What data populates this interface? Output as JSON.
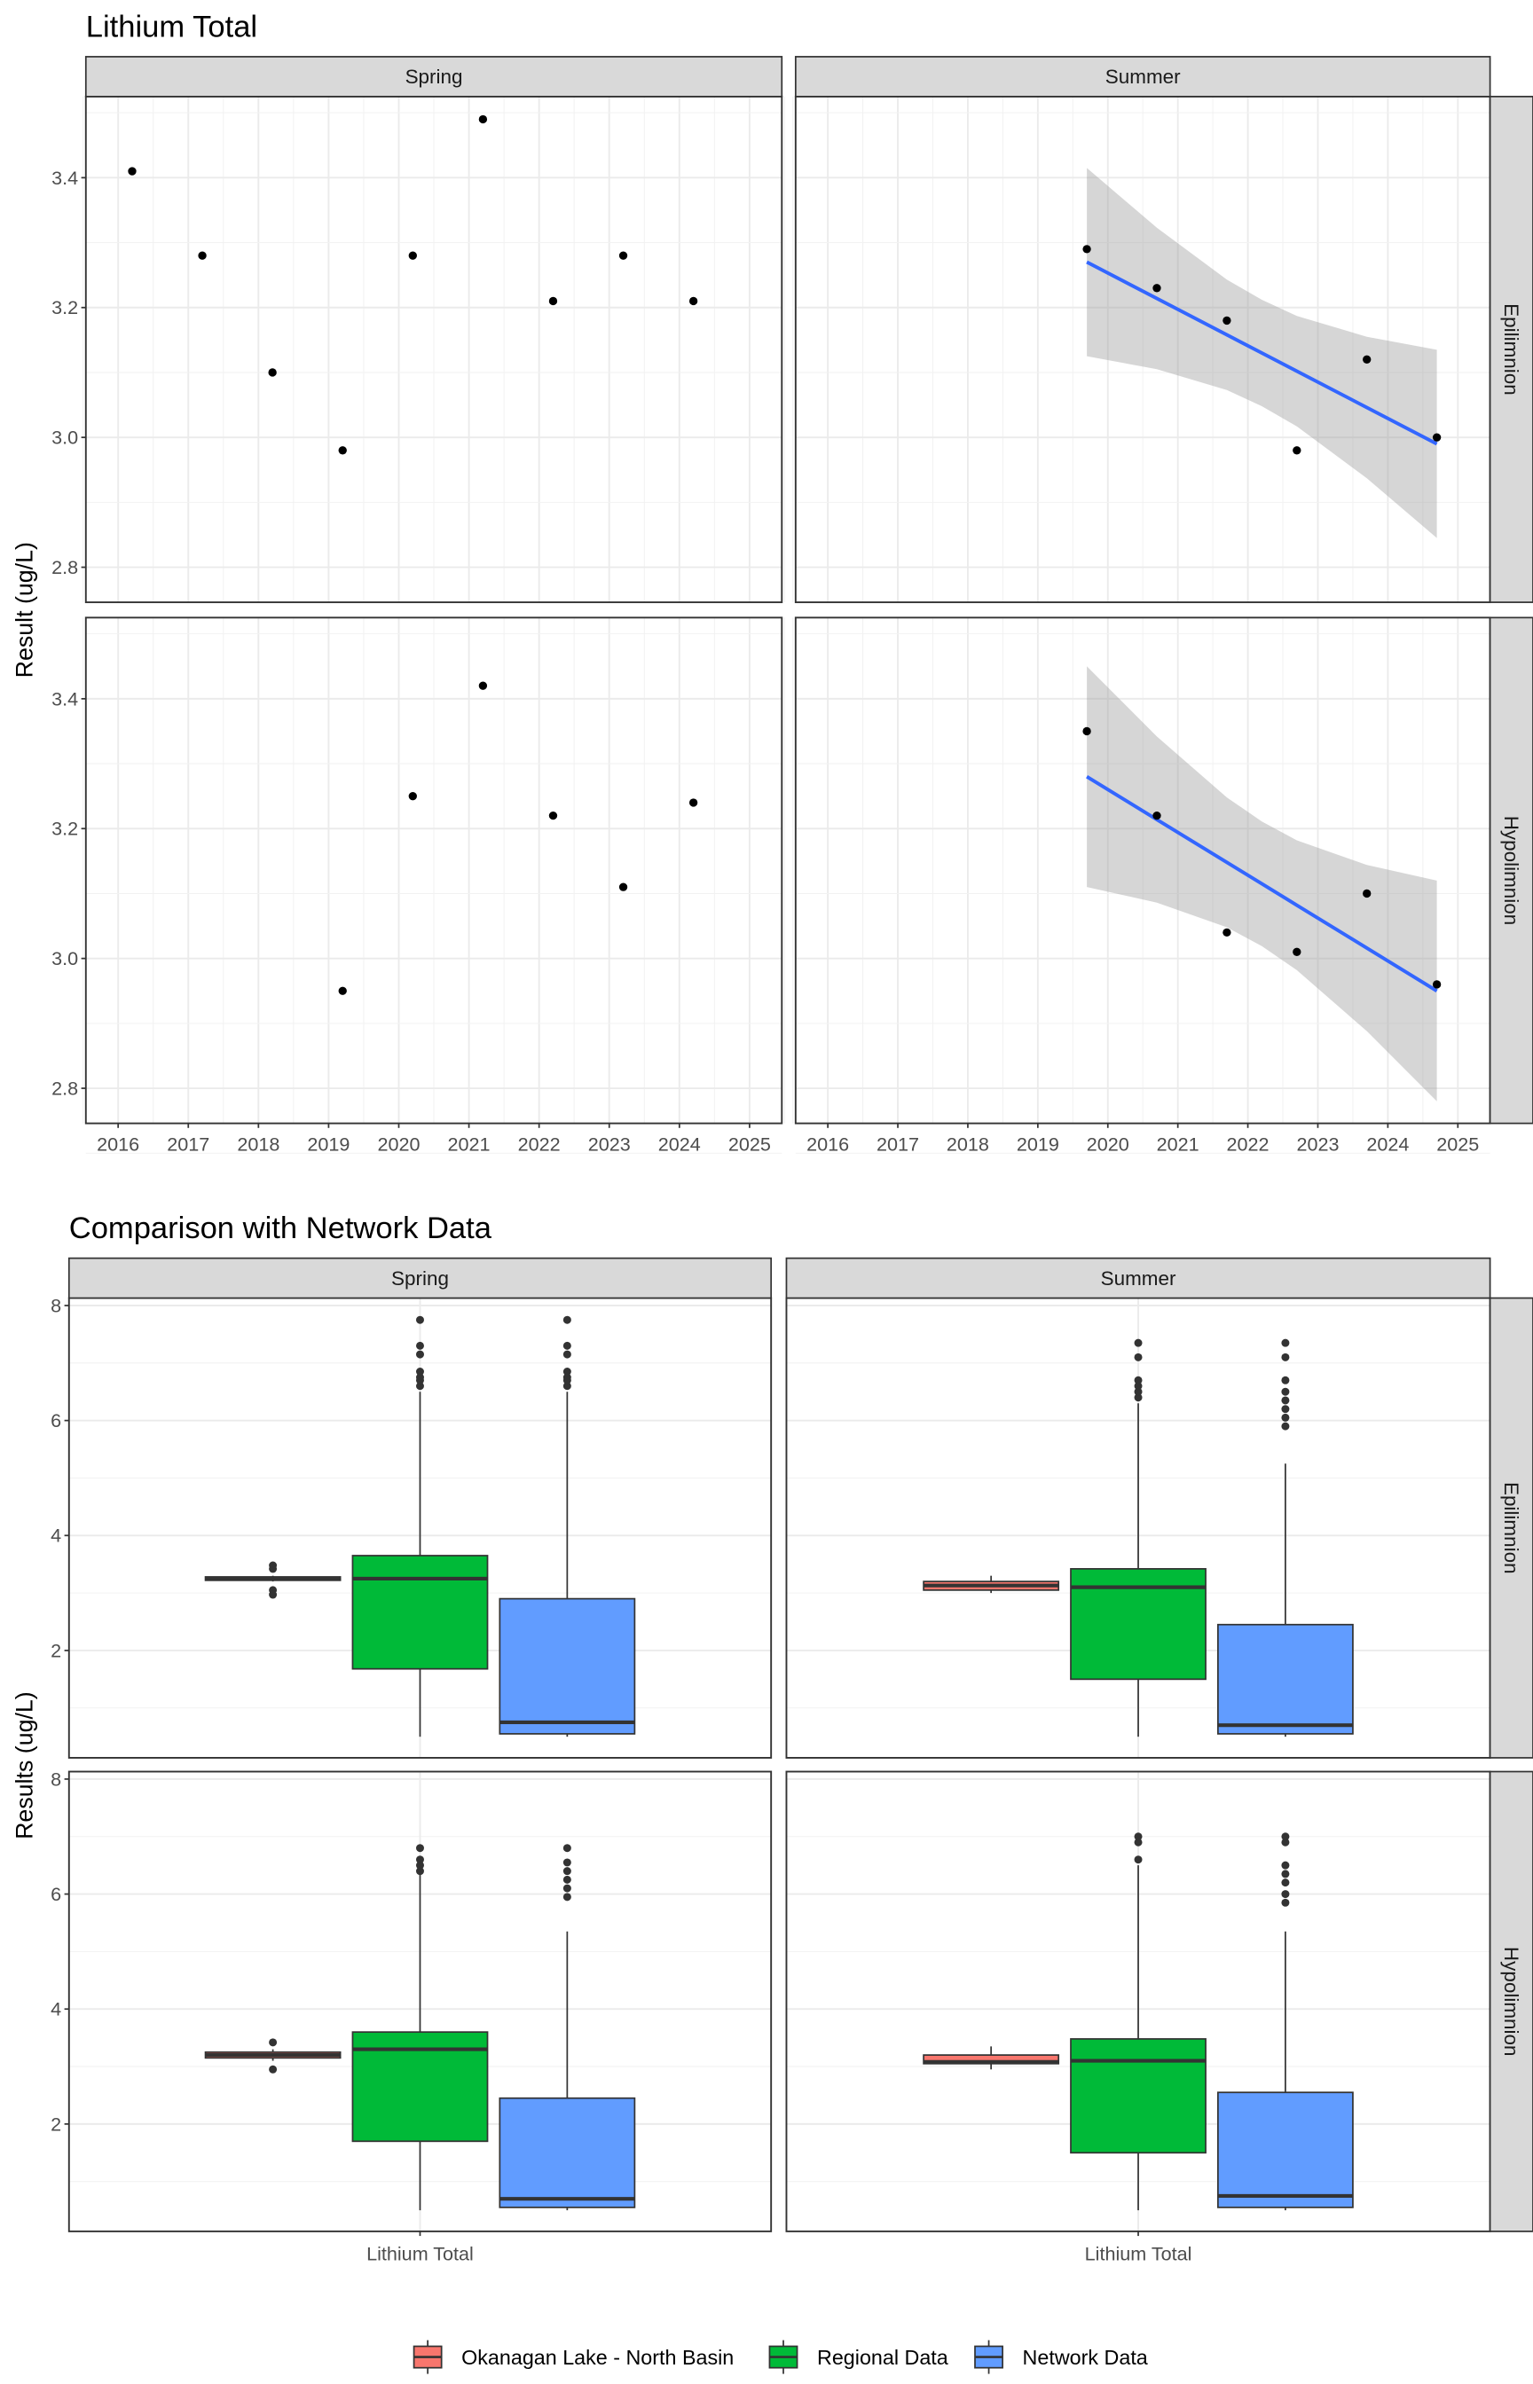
{
  "chart_data": [
    {
      "type": "scatter",
      "title": "Lithium Total",
      "xlabel": "",
      "ylabel": "Result (ug/L)",
      "col_facets": [
        "Spring",
        "Summer"
      ],
      "row_facets": [
        "Epilimnion",
        "Hypolimnion"
      ],
      "xticks": [
        2016,
        2017,
        2018,
        2019,
        2020,
        2021,
        2022,
        2023,
        2024,
        2025
      ],
      "xlim": [
        2015.54,
        2025.46
      ],
      "yticks": [
        2.8,
        3.0,
        3.2,
        3.4
      ],
      "ytick_labels": [
        "2.8",
        "3.0",
        "3.2",
        "3.4"
      ],
      "ylim": [
        2.746,
        3.525
      ],
      "grid": true,
      "colors": {
        "points": "#000000",
        "trend": "#3366FF",
        "ci": "#BEBEBE"
      },
      "panels": [
        {
          "col": "Spring",
          "row": "Epilimnion",
          "points": [
            [
              2016.2,
              3.41
            ],
            [
              2017.2,
              3.28
            ],
            [
              2018.2,
              3.1
            ],
            [
              2019.2,
              2.98
            ],
            [
              2020.2,
              3.28
            ],
            [
              2021.2,
              3.49
            ],
            [
              2022.2,
              3.21
            ],
            [
              2023.2,
              3.28
            ],
            [
              2024.2,
              3.21
            ]
          ]
        },
        {
          "col": "Summer",
          "row": "Epilimnion",
          "points": [
            [
              2019.7,
              3.29
            ],
            [
              2020.7,
              3.23
            ],
            [
              2021.7,
              3.18
            ],
            [
              2022.7,
              2.98
            ],
            [
              2023.7,
              3.12
            ],
            [
              2024.7,
              3.0
            ]
          ],
          "trend": {
            "x": [
              2019.7,
              2020.7,
              2021.7,
              2022.2,
              2022.7,
              2023.7,
              2024.7
            ],
            "fit": [
              3.27,
              3.214,
              3.158,
              3.13,
              3.102,
              3.046,
              2.99
            ],
            "upper": [
              3.415,
              3.323,
              3.243,
              3.212,
              3.187,
              3.155,
              3.135
            ],
            "lower": [
              3.125,
              3.105,
              3.073,
              3.048,
              3.017,
              2.937,
              2.845
            ]
          }
        },
        {
          "col": "Spring",
          "row": "Hypolimnion",
          "points": [
            [
              2019.2,
              2.95
            ],
            [
              2020.2,
              3.25
            ],
            [
              2021.2,
              3.42
            ],
            [
              2022.2,
              3.22
            ],
            [
              2023.2,
              3.11
            ],
            [
              2024.2,
              3.24
            ]
          ]
        },
        {
          "col": "Summer",
          "row": "Hypolimnion",
          "points": [
            [
              2019.7,
              3.35
            ],
            [
              2020.7,
              3.22
            ],
            [
              2021.7,
              3.04
            ],
            [
              2022.7,
              3.01
            ],
            [
              2023.7,
              3.1
            ],
            [
              2024.7,
              2.96
            ]
          ],
          "trend": {
            "x": [
              2019.7,
              2020.7,
              2021.7,
              2022.2,
              2022.7,
              2023.7,
              2024.7
            ],
            "fit": [
              3.28,
              3.214,
              3.148,
              3.115,
              3.082,
              3.016,
              2.95
            ],
            "upper": [
              3.45,
              3.342,
              3.248,
              3.211,
              3.182,
              3.144,
              3.12
            ],
            "lower": [
              3.11,
              3.086,
              3.048,
              3.019,
              2.982,
              2.888,
              2.78
            ]
          }
        }
      ]
    },
    {
      "type": "boxplot",
      "title": "Comparison with Network Data",
      "xlabel": "",
      "ylabel": "Results (ug/L)",
      "category": "Lithium Total",
      "col_facets": [
        "Spring",
        "Summer"
      ],
      "row_facets": [
        "Epilimnion",
        "Hypolimnion"
      ],
      "yticks": [
        2,
        4,
        6,
        8
      ],
      "ytick_labels": [
        "2",
        "4",
        "6",
        "8"
      ],
      "ylim": [
        0.133,
        8.13
      ],
      "grid": true,
      "legend": {
        "position": "bottom",
        "entries": [
          {
            "name": "Okanagan Lake - North Basin",
            "color": "#F8766D"
          },
          {
            "name": "Regional Data",
            "color": "#00BA38"
          },
          {
            "name": "Network Data",
            "color": "#619CFF"
          }
        ]
      },
      "panels": [
        {
          "col": "Spring",
          "row": "Epilimnion",
          "boxes": [
            {
              "group": "Okanagan Lake - North Basin",
              "whisker_low": 3.2,
              "q1": 3.22,
              "median": 3.25,
              "q3": 3.28,
              "whisker_high": 3.3,
              "outliers": [
                3.48,
                3.42,
                3.05,
                2.97
              ]
            },
            {
              "group": "Regional Data",
              "whisker_low": 0.5,
              "q1": 1.68,
              "median": 3.25,
              "q3": 3.65,
              "whisker_high": 6.5,
              "outliers": [
                6.6,
                6.7,
                6.75,
                6.85,
                7.15,
                7.3,
                7.75
              ]
            },
            {
              "group": "Network Data",
              "whisker_low": 0.5,
              "q1": 0.55,
              "median": 0.75,
              "q3": 2.9,
              "whisker_high": 6.5,
              "outliers": [
                6.6,
                6.7,
                6.75,
                6.85,
                7.15,
                7.3,
                7.75
              ]
            }
          ]
        },
        {
          "col": "Summer",
          "row": "Epilimnion",
          "boxes": [
            {
              "group": "Okanagan Lake - North Basin",
              "whisker_low": 3.0,
              "q1": 3.05,
              "median": 3.13,
              "q3": 3.2,
              "whisker_high": 3.3,
              "outliers": []
            },
            {
              "group": "Regional Data",
              "whisker_low": 0.5,
              "q1": 1.5,
              "median": 3.1,
              "q3": 3.42,
              "whisker_high": 6.3,
              "outliers": [
                6.4,
                6.5,
                6.6,
                6.7,
                7.1,
                7.35
              ]
            },
            {
              "group": "Network Data",
              "whisker_low": 0.5,
              "q1": 0.55,
              "median": 0.7,
              "q3": 2.45,
              "whisker_high": 5.25,
              "outliers": [
                5.9,
                6.05,
                6.2,
                6.35,
                6.5,
                6.7,
                7.1,
                7.35
              ]
            }
          ]
        },
        {
          "col": "Spring",
          "row": "Hypolimnion",
          "boxes": [
            {
              "group": "Okanagan Lake - North Basin",
              "whisker_low": 3.1,
              "q1": 3.15,
              "median": 3.2,
              "q3": 3.25,
              "whisker_high": 3.3,
              "outliers": [
                3.42,
                2.95
              ]
            },
            {
              "group": "Regional Data",
              "whisker_low": 0.5,
              "q1": 1.7,
              "median": 3.3,
              "q3": 3.6,
              "whisker_high": 6.35,
              "outliers": [
                6.4,
                6.5,
                6.6,
                6.8
              ]
            },
            {
              "group": "Network Data",
              "whisker_low": 0.5,
              "q1": 0.55,
              "median": 0.7,
              "q3": 2.45,
              "whisker_high": 5.35,
              "outliers": [
                5.95,
                6.1,
                6.25,
                6.4,
                6.55,
                6.8
              ]
            }
          ]
        },
        {
          "col": "Summer",
          "row": "Hypolimnion",
          "boxes": [
            {
              "group": "Okanagan Lake - North Basin",
              "whisker_low": 2.95,
              "q1": 3.05,
              "median": 3.08,
              "q3": 3.2,
              "whisker_high": 3.35,
              "outliers": []
            },
            {
              "group": "Regional Data",
              "whisker_low": 0.5,
              "q1": 1.5,
              "median": 3.1,
              "q3": 3.48,
              "whisker_high": 6.5,
              "outliers": [
                6.6,
                6.9,
                7.0
              ]
            },
            {
              "group": "Network Data",
              "whisker_low": 0.5,
              "q1": 0.55,
              "median": 0.75,
              "q3": 2.55,
              "whisker_high": 5.35,
              "outliers": [
                5.85,
                6.0,
                6.2,
                6.35,
                6.5,
                6.9,
                7.0
              ]
            }
          ]
        }
      ]
    }
  ]
}
